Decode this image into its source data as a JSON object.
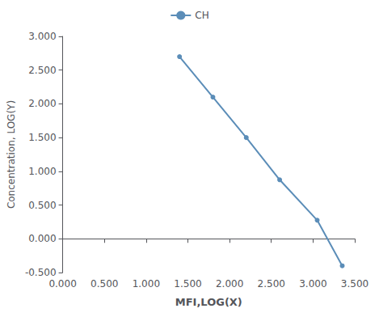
{
  "chart_data": {
    "type": "line",
    "x": [
      1.4,
      1.8,
      2.2,
      2.6,
      3.05,
      3.35
    ],
    "series": [
      {
        "name": "CH",
        "color": "#5b8db8",
        "marker": "circle",
        "values": [
          2.7,
          2.1,
          1.5,
          0.875,
          0.275,
          -0.4
        ]
      }
    ],
    "xlabel": "MFI,LOG(X)",
    "ylabel": "Concentration, LOG(Y)",
    "xlim": [
      0.0,
      3.5
    ],
    "ylim": [
      -0.5,
      3.0
    ],
    "xticks": [
      {
        "value": 0.0,
        "label": "0.000"
      },
      {
        "value": 0.5,
        "label": "0.500"
      },
      {
        "value": 1.0,
        "label": "1.000"
      },
      {
        "value": 1.5,
        "label": "1.500"
      },
      {
        "value": 2.0,
        "label": "2.000"
      },
      {
        "value": 2.5,
        "label": "2.500"
      },
      {
        "value": 3.0,
        "label": "3.000"
      },
      {
        "value": 3.5,
        "label": "3.500"
      }
    ],
    "yticks": [
      {
        "value": -0.5,
        "label": "-0.500"
      },
      {
        "value": 0.0,
        "label": "0.000"
      },
      {
        "value": 0.5,
        "label": "0.500"
      },
      {
        "value": 1.0,
        "label": "1.000"
      },
      {
        "value": 1.5,
        "label": "1.500"
      },
      {
        "value": 2.0,
        "label": "2.000"
      },
      {
        "value": 2.5,
        "label": "2.500"
      },
      {
        "value": 3.0,
        "label": "3.000"
      }
    ],
    "grid": false,
    "legend": "top"
  }
}
